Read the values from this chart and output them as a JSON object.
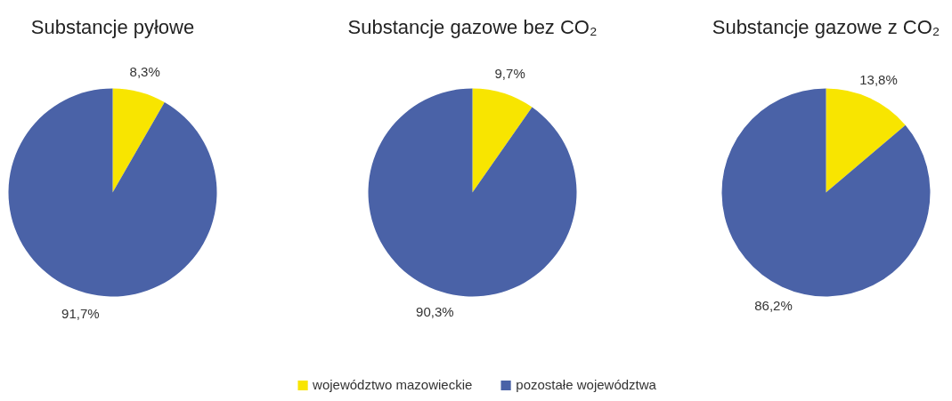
{
  "chart_data": [
    {
      "type": "pie",
      "title": "Substancje pyłowe",
      "categories": [
        "województwo mazowieckie",
        "pozostałe województwa"
      ],
      "values": [
        8.3,
        91.7
      ],
      "colors": [
        "#f8e500",
        "#4a62a7"
      ],
      "value_labels": [
        "8,3%",
        "91,7%"
      ],
      "legend": "bottom"
    },
    {
      "type": "pie",
      "title": "Substancje gazowe bez CO₂",
      "values": [
        9.7,
        90.3
      ],
      "colors": [
        "#f8e500",
        "#4a62a7"
      ],
      "value_labels": [
        "9,7%",
        "90,3%"
      ]
    },
    {
      "type": "pie",
      "title": "Substancje gazowe z CO₂",
      "values": [
        13.8,
        86.2
      ],
      "colors": [
        "#f8e500",
        "#4a62a7"
      ],
      "value_labels": [
        "13,8%",
        "86,2%"
      ]
    }
  ]
}
